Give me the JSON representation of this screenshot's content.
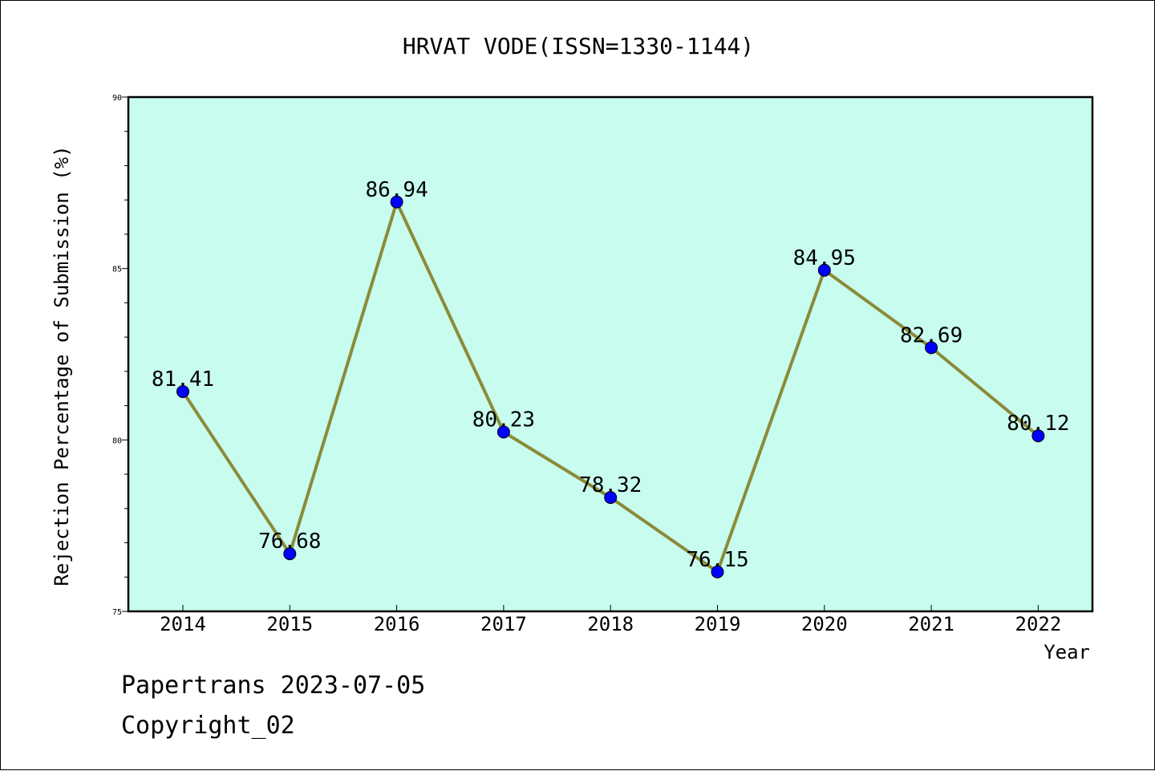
{
  "chart_data": {
    "type": "line",
    "title": "HRVAT VODE(ISSN=1330-1144)",
    "xlabel": "Year",
    "ylabel": "Rejection Percentage of Submission (%)",
    "categories": [
      "2014",
      "2015",
      "2016",
      "2017",
      "2018",
      "2019",
      "2020",
      "2021",
      "2022"
    ],
    "values": [
      81.41,
      76.68,
      86.94,
      80.23,
      78.32,
      76.15,
      84.95,
      82.69,
      80.12
    ],
    "value_labels": [
      "81.41",
      "76.68",
      "86.94",
      "80.23",
      "78.32",
      "76.15",
      "84.95",
      "82.69",
      "80.12"
    ],
    "ylim": [
      75,
      90
    ],
    "y_ticks": [
      "75",
      "80",
      "85",
      "90"
    ],
    "grid": false,
    "colors": {
      "plot_background": "#c8fcee",
      "line": "#8b8b3a",
      "marker": "#0000ff"
    }
  },
  "footer": {
    "line1": "Papertrans 2023-07-05",
    "line2": "Copyright_02"
  }
}
